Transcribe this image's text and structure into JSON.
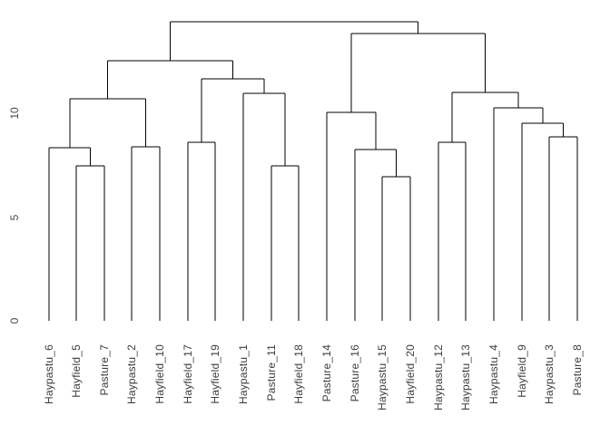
{
  "figure": {
    "background": "#ffffff"
  },
  "chart_data": {
    "type": "dendrogram",
    "title": "",
    "xlabel": "",
    "ylabel": "",
    "grid": false,
    "line_color": "#000000",
    "label_color": "#3d3d3d",
    "tick_label_color": "#4a4a4a",
    "leaf_label_rotation": 90,
    "axis": {
      "yticks": [
        0,
        5,
        10
      ],
      "ylim": [
        0,
        14.6
      ],
      "tick_label_rotation": 90
    },
    "leaves": [
      "Haypastu_6",
      "Hayfield_5",
      "Pasture_7",
      "Haypastu_2",
      "Hayfield_10",
      "Hayfield_17",
      "Hayfield_19",
      "Haypastu_1",
      "Pasture_11",
      "Hayfield_18",
      "Pasture_14",
      "Pasture_16",
      "Haypastu_15",
      "Hayfield_20",
      "Haypastu_12",
      "Haypastu_13",
      "Haypastu_4",
      "Hayfield_9",
      "Haypastu_3",
      "Pasture_8"
    ],
    "tree": {
      "height": 14.4,
      "children": [
        {
          "height": 12.55,
          "children": [
            {
              "height": 10.7,
              "children": [
                {
                  "height": 8.35,
                  "children": [
                    {
                      "leaf": "Haypastu_6"
                    },
                    {
                      "height": 7.45,
                      "children": [
                        {
                          "leaf": "Hayfield_5"
                        },
                        {
                          "leaf": "Pasture_7"
                        }
                      ]
                    }
                  ]
                },
                {
                  "height": 8.4,
                  "children": [
                    {
                      "leaf": "Haypastu_2"
                    },
                    {
                      "leaf": "Hayfield_10"
                    }
                  ]
                }
              ]
            },
            {
              "height": 11.65,
              "children": [
                {
                  "height": 8.6,
                  "children": [
                    {
                      "leaf": "Hayfield_17"
                    },
                    {
                      "leaf": "Hayfield_19"
                    }
                  ]
                },
                {
                  "height": 10.95,
                  "children": [
                    {
                      "leaf": "Haypastu_1"
                    },
                    {
                      "height": 7.45,
                      "children": [
                        {
                          "leaf": "Pasture_11"
                        },
                        {
                          "leaf": "Hayfield_18"
                        }
                      ]
                    }
                  ]
                }
              ]
            }
          ]
        },
        {
          "height": 13.85,
          "children": [
            {
              "height": 10.05,
              "children": [
                {
                  "leaf": "Pasture_14"
                },
                {
                  "height": 8.25,
                  "children": [
                    {
                      "leaf": "Pasture_16"
                    },
                    {
                      "height": 6.95,
                      "children": [
                        {
                          "leaf": "Haypastu_15"
                        },
                        {
                          "leaf": "Hayfield_20"
                        }
                      ]
                    }
                  ]
                }
              ]
            },
            {
              "height": 11.0,
              "children": [
                {
                  "height": 8.6,
                  "children": [
                    {
                      "leaf": "Haypastu_12"
                    },
                    {
                      "leaf": "Haypastu_13"
                    }
                  ]
                },
                {
                  "height": 10.25,
                  "children": [
                    {
                      "leaf": "Haypastu_4"
                    },
                    {
                      "height": 9.5,
                      "children": [
                        {
                          "leaf": "Hayfield_9"
                        },
                        {
                          "height": 8.85,
                          "children": [
                            {
                              "leaf": "Haypastu_3"
                            },
                            {
                              "leaf": "Pasture_8"
                            }
                          ]
                        }
                      ]
                    }
                  ]
                }
              ]
            }
          ]
        }
      ]
    }
  }
}
